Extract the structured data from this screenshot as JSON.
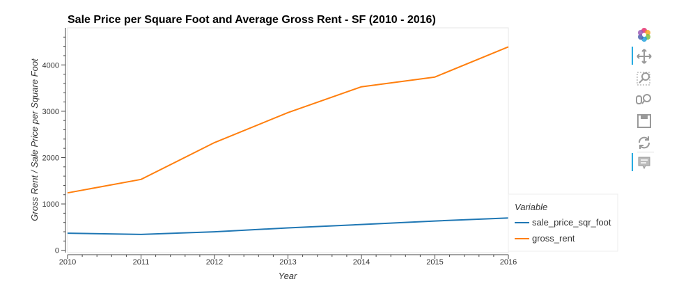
{
  "chart_data": {
    "type": "line",
    "title": "Sale Price per Square Foot and Average Gross Rent - SF (2010 - 2016)",
    "xlabel": "Year",
    "ylabel": "Gross Rent / Sale Price per Square Foot",
    "x": [
      2010,
      2011,
      2012,
      2013,
      2014,
      2015,
      2016
    ],
    "xlim": [
      2010,
      2016
    ],
    "ylim": [
      -50,
      4800
    ],
    "xticks": [
      "2010",
      "2011",
      "2012",
      "2013",
      "2014",
      "2015",
      "2016"
    ],
    "yticks": [
      "0",
      "1000",
      "2000",
      "3000",
      "4000"
    ],
    "legend_title": "Variable",
    "legend_position": "bottom-right (outside plot)",
    "grid": false,
    "series": [
      {
        "name": "sale_price_sqr_foot",
        "color": "#1f77b4",
        "values": [
          369,
          342,
          399,
          483,
          556,
          632,
          697
        ]
      },
      {
        "name": "gross_rent",
        "color": "#ff7f0e",
        "values": [
          1239,
          1530,
          2324,
          2971,
          3528,
          3739,
          4390
        ]
      }
    ]
  },
  "toolbar": {
    "tools": [
      "bokeh-logo-icon",
      "pan-icon",
      "box-zoom-icon",
      "wheel-zoom-icon",
      "save-icon",
      "reset-icon",
      "hover-icon"
    ]
  }
}
